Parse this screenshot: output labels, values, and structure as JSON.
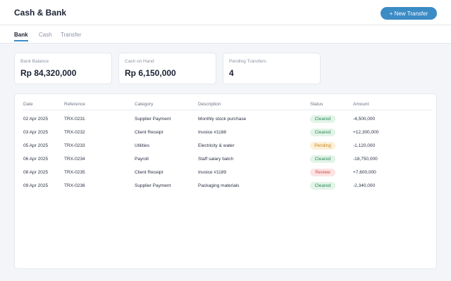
{
  "header": {
    "title": "Cash & Bank",
    "new_transfer_label": "+ New Transfer"
  },
  "tabs": [
    {
      "label": "Bank",
      "active": true
    },
    {
      "label": "Cash",
      "active": false
    },
    {
      "label": "Transfer",
      "active": false
    }
  ],
  "summary": [
    {
      "label": "Bank Balance",
      "value": "Rp 84,320,000"
    },
    {
      "label": "Cash on Hand",
      "value": "Rp 6,150,000"
    },
    {
      "label": "Pending Transfers",
      "value": "4"
    }
  ],
  "table": {
    "columns": [
      "Date",
      "Reference",
      "Category",
      "Description",
      "Status",
      "Amount"
    ],
    "rows": [
      {
        "date": "02 Apr 2025",
        "reference": "TRX-0231",
        "category": "Supplier Payment",
        "description": "Monthly stock purchase",
        "status": "Cleared",
        "amount": "-4,500,000"
      },
      {
        "date": "03 Apr 2025",
        "reference": "TRX-0232",
        "category": "Client Receipt",
        "description": "Invoice #1188",
        "status": "Cleared",
        "amount": "+12,300,000"
      },
      {
        "date": "05 Apr 2025",
        "reference": "TRX-0233",
        "category": "Utilities",
        "description": "Electricity & water",
        "status": "Pending",
        "amount": "-1,120,000"
      },
      {
        "date": "06 Apr 2025",
        "reference": "TRX-0234",
        "category": "Payroll",
        "description": "Staff salary batch",
        "status": "Cleared",
        "amount": "-18,750,000"
      },
      {
        "date": "08 Apr 2025",
        "reference": "TRX-0235",
        "category": "Client Receipt",
        "description": "Invoice #1189",
        "status": "Review",
        "amount": "+7,600,000"
      },
      {
        "date": "09 Apr 2025",
        "reference": "TRX-0236",
        "category": "Supplier Payment",
        "description": "Packaging materials",
        "status": "Cleared",
        "amount": "-2,340,000"
      }
    ]
  },
  "colors": {
    "accent": "#3b8bc5",
    "cleared": "#2e8b57",
    "pending": "#c7861f",
    "review": "#cf4a4a"
  }
}
